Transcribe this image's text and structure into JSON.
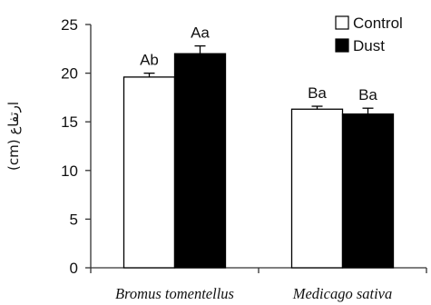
{
  "chart_data": {
    "type": "bar",
    "categories": [
      "Bromus tomentellus",
      "Medicago sativa"
    ],
    "series": [
      {
        "name": "Control",
        "values": [
          19.6,
          16.3
        ],
        "errors": [
          0.4,
          0.3
        ],
        "labels": [
          "Ab",
          "Ba"
        ],
        "color": "#ffffff"
      },
      {
        "name": "Dust",
        "values": [
          22.0,
          15.8
        ],
        "errors": [
          0.8,
          0.6
        ],
        "labels": [
          "Aa",
          "Ba"
        ],
        "color": "#000000"
      }
    ],
    "ylabel": "ارتفاع (cm)",
    "ylim": [
      0,
      25
    ],
    "yticks": [
      0,
      5,
      10,
      15,
      20,
      25
    ],
    "grid": false,
    "legend_position": "top-right"
  }
}
